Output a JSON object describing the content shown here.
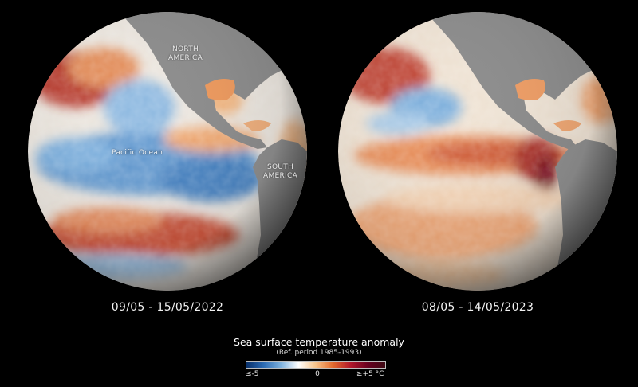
{
  "globes": [
    {
      "date": "09/05 - 15/05/2022",
      "labels": {
        "north_america": [
          "NORTH",
          "AMERICA"
        ],
        "pacific": "Pacific Ocean",
        "south_america": [
          "SOUTH",
          "AMERICA"
        ]
      }
    },
    {
      "date": "08/05 - 14/05/2023"
    }
  ],
  "legend": {
    "title": "Sea surface temperature anomaly",
    "subtitle": "(Ref. period 1985-1993)",
    "min_label": "≤-5",
    "mid_label": "0",
    "max_label": "≥+5 °C",
    "colors": [
      "#08306b",
      "#2c6bb3",
      "#7fb2dd",
      "#ffffff",
      "#f6c38a",
      "#e2692d",
      "#b2182b",
      "#67001f",
      "#3d0a14"
    ]
  }
}
